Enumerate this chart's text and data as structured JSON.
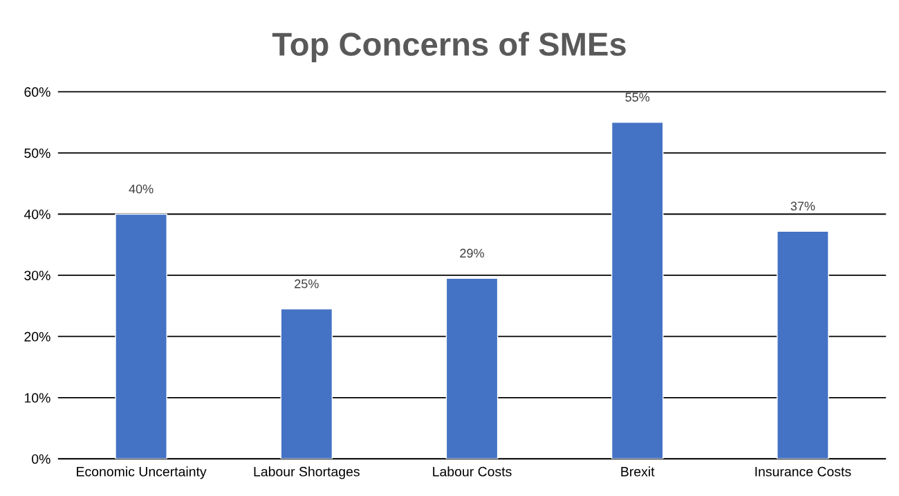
{
  "chart_data": {
    "type": "bar",
    "title": "Top Concerns of SMEs",
    "categories": [
      "Economic Uncertainty",
      "Labour Shortages",
      "Labour Costs",
      "Brexit",
      "Insurance Costs"
    ],
    "values": [
      40,
      24.5,
      29.5,
      55,
      37.2
    ],
    "value_labels": [
      "40%",
      "25%",
      "29%",
      "55%",
      "37%"
    ],
    "color": "#4472c4",
    "ylim": [
      0,
      60
    ],
    "yticks": [
      {
        "value": 0,
        "label": "0%"
      },
      {
        "value": 10,
        "label": "10%"
      },
      {
        "value": 20,
        "label": "20%"
      },
      {
        "value": 30,
        "label": "30%"
      },
      {
        "value": 40,
        "label": "40%"
      },
      {
        "value": 50,
        "label": "50%"
      },
      {
        "value": 60,
        "label": "60%"
      }
    ],
    "grid": "y"
  }
}
